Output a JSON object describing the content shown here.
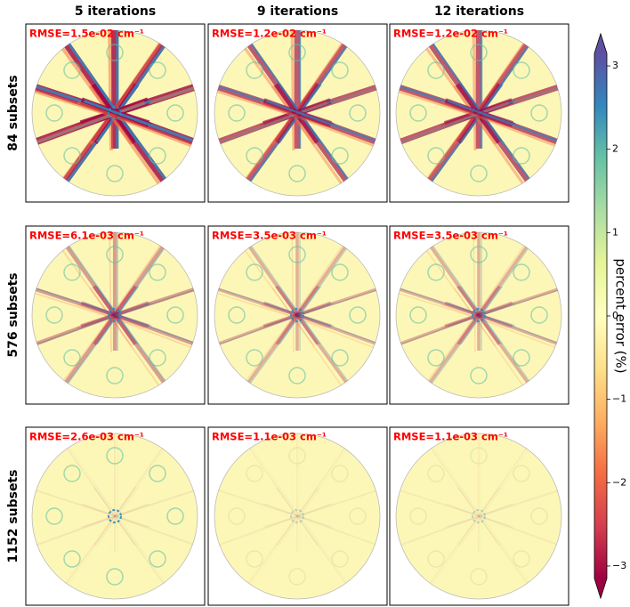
{
  "chart_data": {
    "type": "image-grid",
    "columns": [
      "5 iterations",
      "9 iterations",
      "12 iterations"
    ],
    "rows": [
      "84 subsets",
      "576 subsets",
      "1152 subsets"
    ],
    "annotations": [
      [
        "RMSE=1.5e-02 cm⁻¹",
        "RMSE=1.2e-02 cm⁻¹",
        "RMSE=1.2e-02 cm⁻¹"
      ],
      [
        "RMSE=6.1e-03 cm⁻¹",
        "RMSE=3.5e-03 cm⁻¹",
        "RMSE=3.5e-03 cm⁻¹"
      ],
      [
        "RMSE=2.6e-03 cm⁻¹",
        "RMSE=1.1e-03 cm⁻¹",
        "RMSE=1.1e-03 cm⁻¹"
      ]
    ],
    "annotation_color": "#ff0000",
    "colorbar": {
      "label": "percent error (%)",
      "colormap": "Spectral",
      "clim": [
        -3.15,
        3.15
      ],
      "ticks": [
        {
          "value": -3,
          "label": "−3"
        },
        {
          "value": -2,
          "label": "−2"
        },
        {
          "value": -1,
          "label": "−1"
        },
        0,
        1,
        2,
        3
      ]
    }
  }
}
